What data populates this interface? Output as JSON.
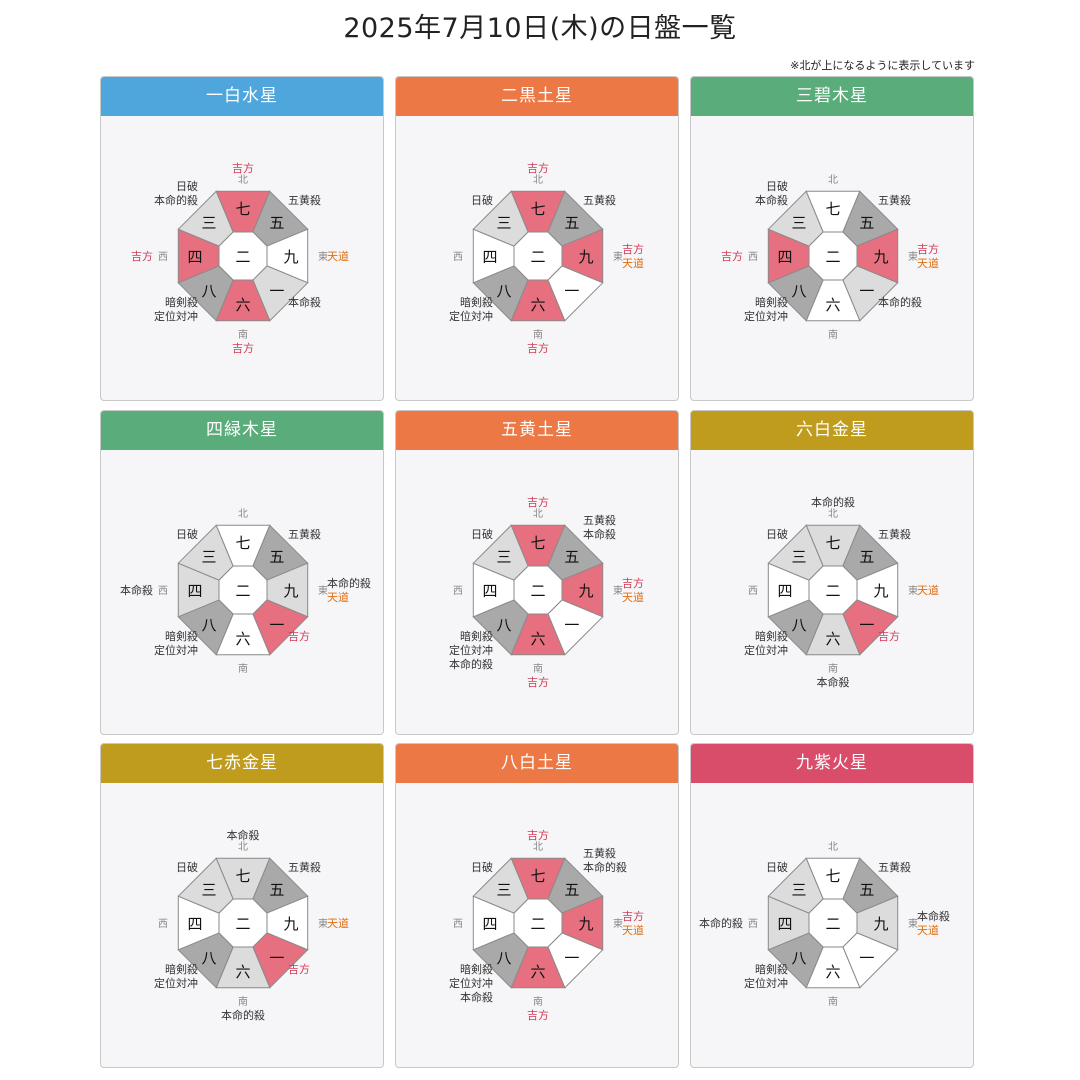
{
  "page": {
    "title": "2025年7月10日(木)の日盤一覧",
    "note": "※北が上になるように表示しています"
  },
  "colors": {
    "blue": "#4fa6dc",
    "orange": "#ec7845",
    "green": "#5aac7a",
    "gold": "#bf9c1e",
    "crimson": "#d94d6b",
    "lucky": "#e6707f",
    "dark": "#a9a9a9",
    "light": "#dcdcdc",
    "white": "#ffffff",
    "red_text": "#d23a55",
    "orange_text": "#e06e10",
    "dir_text": "#888888"
  },
  "directions": {
    "N": "北",
    "S": "南",
    "E": "東",
    "W": "西"
  },
  "cards": [
    {
      "title": "一白水星",
      "header_color": "blue",
      "center": "二",
      "nums": {
        "N": "七",
        "NE": "五",
        "E": "九",
        "SE": "一",
        "S": "六",
        "SW": "八",
        "W": "四",
        "NW": "三"
      },
      "fills": {
        "N": "lucky",
        "NE": "dark",
        "E": "white",
        "SE": "light",
        "S": "lucky",
        "SW": "dark",
        "W": "lucky",
        "NW": "light"
      },
      "labels": {
        "N": [
          {
            "t": "吉方",
            "c": "red"
          }
        ],
        "NE": [
          {
            "t": "五黄殺",
            "c": "dark"
          }
        ],
        "E": [
          {
            "t": "天道",
            "c": "orange"
          }
        ],
        "SE": [
          {
            "t": "本命殺",
            "c": "dark"
          }
        ],
        "S": [
          {
            "t": "吉方",
            "c": "red"
          }
        ],
        "SW": [
          {
            "t": "暗剣殺",
            "c": "dark"
          },
          {
            "t": "定位対冲",
            "c": "dark"
          }
        ],
        "W": [
          {
            "t": "吉方",
            "c": "red"
          }
        ],
        "NW": [
          {
            "t": "日破",
            "c": "dark"
          },
          {
            "t": "本命的殺",
            "c": "dark"
          }
        ]
      }
    },
    {
      "title": "二黒土星",
      "header_color": "orange",
      "center": "二",
      "nums": {
        "N": "七",
        "NE": "五",
        "E": "九",
        "SE": "一",
        "S": "六",
        "SW": "八",
        "W": "四",
        "NW": "三"
      },
      "fills": {
        "N": "lucky",
        "NE": "dark",
        "E": "lucky",
        "SE": "white",
        "S": "lucky",
        "SW": "dark",
        "W": "white",
        "NW": "light"
      },
      "labels": {
        "N": [
          {
            "t": "吉方",
            "c": "red"
          }
        ],
        "NE": [
          {
            "t": "五黄殺",
            "c": "dark"
          }
        ],
        "E": [
          {
            "t": "吉方",
            "c": "red"
          },
          {
            "t": "天道",
            "c": "orange"
          }
        ],
        "SE": [],
        "S": [
          {
            "t": "吉方",
            "c": "red"
          }
        ],
        "SW": [
          {
            "t": "暗剣殺",
            "c": "dark"
          },
          {
            "t": "定位対冲",
            "c": "dark"
          }
        ],
        "W": [],
        "NW": [
          {
            "t": "日破",
            "c": "dark"
          }
        ]
      }
    },
    {
      "title": "三碧木星",
      "header_color": "green",
      "center": "二",
      "nums": {
        "N": "七",
        "NE": "五",
        "E": "九",
        "SE": "一",
        "S": "六",
        "SW": "八",
        "W": "四",
        "NW": "三"
      },
      "fills": {
        "N": "white",
        "NE": "dark",
        "E": "lucky",
        "SE": "light",
        "S": "white",
        "SW": "dark",
        "W": "lucky",
        "NW": "light"
      },
      "labels": {
        "N": [],
        "NE": [
          {
            "t": "五黄殺",
            "c": "dark"
          }
        ],
        "E": [
          {
            "t": "吉方",
            "c": "red"
          },
          {
            "t": "天道",
            "c": "orange"
          }
        ],
        "SE": [
          {
            "t": "本命的殺",
            "c": "dark"
          }
        ],
        "S": [],
        "SW": [
          {
            "t": "暗剣殺",
            "c": "dark"
          },
          {
            "t": "定位対冲",
            "c": "dark"
          }
        ],
        "W": [
          {
            "t": "吉方",
            "c": "red"
          }
        ],
        "NW": [
          {
            "t": "日破",
            "c": "dark"
          },
          {
            "t": "本命殺",
            "c": "dark"
          }
        ]
      }
    },
    {
      "title": "四緑木星",
      "header_color": "green",
      "center": "二",
      "nums": {
        "N": "七",
        "NE": "五",
        "E": "九",
        "SE": "一",
        "S": "六",
        "SW": "八",
        "W": "四",
        "NW": "三"
      },
      "fills": {
        "N": "white",
        "NE": "dark",
        "E": "light",
        "SE": "lucky",
        "S": "white",
        "SW": "dark",
        "W": "light",
        "NW": "light"
      },
      "labels": {
        "N": [],
        "NE": [
          {
            "t": "五黄殺",
            "c": "dark"
          }
        ],
        "E": [
          {
            "t": "本命的殺",
            "c": "dark"
          },
          {
            "t": "天道",
            "c": "orange"
          }
        ],
        "SE": [
          {
            "t": "吉方",
            "c": "red"
          }
        ],
        "S": [],
        "SW": [
          {
            "t": "暗剣殺",
            "c": "dark"
          },
          {
            "t": "定位対冲",
            "c": "dark"
          }
        ],
        "W": [
          {
            "t": "本命殺",
            "c": "dark"
          }
        ],
        "NW": [
          {
            "t": "日破",
            "c": "dark"
          }
        ]
      }
    },
    {
      "title": "五黄土星",
      "header_color": "orange",
      "center": "二",
      "nums": {
        "N": "七",
        "NE": "五",
        "E": "九",
        "SE": "一",
        "S": "六",
        "SW": "八",
        "W": "四",
        "NW": "三"
      },
      "fills": {
        "N": "lucky",
        "NE": "dark",
        "E": "lucky",
        "SE": "white",
        "S": "lucky",
        "SW": "dark",
        "W": "white",
        "NW": "light"
      },
      "labels": {
        "N": [
          {
            "t": "吉方",
            "c": "red"
          }
        ],
        "NE": [
          {
            "t": "五黄殺",
            "c": "dark"
          },
          {
            "t": "本命殺",
            "c": "dark"
          }
        ],
        "E": [
          {
            "t": "吉方",
            "c": "red"
          },
          {
            "t": "天道",
            "c": "orange"
          }
        ],
        "SE": [],
        "S": [
          {
            "t": "吉方",
            "c": "red"
          }
        ],
        "SW": [
          {
            "t": "暗剣殺",
            "c": "dark"
          },
          {
            "t": "定位対冲",
            "c": "dark"
          },
          {
            "t": "本命的殺",
            "c": "dark"
          }
        ],
        "W": [],
        "NW": [
          {
            "t": "日破",
            "c": "dark"
          }
        ]
      }
    },
    {
      "title": "六白金星",
      "header_color": "gold",
      "center": "二",
      "nums": {
        "N": "七",
        "NE": "五",
        "E": "九",
        "SE": "一",
        "S": "六",
        "SW": "八",
        "W": "四",
        "NW": "三"
      },
      "fills": {
        "N": "light",
        "NE": "dark",
        "E": "white",
        "SE": "lucky",
        "S": "light",
        "SW": "dark",
        "W": "white",
        "NW": "light"
      },
      "labels": {
        "N": [
          {
            "t": "本命的殺",
            "c": "dark"
          }
        ],
        "NE": [
          {
            "t": "五黄殺",
            "c": "dark"
          }
        ],
        "E": [
          {
            "t": "天道",
            "c": "orange"
          }
        ],
        "SE": [
          {
            "t": "吉方",
            "c": "red"
          }
        ],
        "S": [
          {
            "t": "本命殺",
            "c": "dark"
          }
        ],
        "SW": [
          {
            "t": "暗剣殺",
            "c": "dark"
          },
          {
            "t": "定位対冲",
            "c": "dark"
          }
        ],
        "W": [],
        "NW": [
          {
            "t": "日破",
            "c": "dark"
          }
        ]
      }
    },
    {
      "title": "七赤金星",
      "header_color": "gold",
      "center": "二",
      "nums": {
        "N": "七",
        "NE": "五",
        "E": "九",
        "SE": "一",
        "S": "六",
        "SW": "八",
        "W": "四",
        "NW": "三"
      },
      "fills": {
        "N": "light",
        "NE": "dark",
        "E": "white",
        "SE": "lucky",
        "S": "light",
        "SW": "dark",
        "W": "white",
        "NW": "light"
      },
      "labels": {
        "N": [
          {
            "t": "本命殺",
            "c": "dark"
          }
        ],
        "NE": [
          {
            "t": "五黄殺",
            "c": "dark"
          }
        ],
        "E": [
          {
            "t": "天道",
            "c": "orange"
          }
        ],
        "SE": [
          {
            "t": "吉方",
            "c": "red"
          }
        ],
        "S": [
          {
            "t": "本命的殺",
            "c": "dark"
          }
        ],
        "SW": [
          {
            "t": "暗剣殺",
            "c": "dark"
          },
          {
            "t": "定位対冲",
            "c": "dark"
          }
        ],
        "W": [],
        "NW": [
          {
            "t": "日破",
            "c": "dark"
          }
        ]
      }
    },
    {
      "title": "八白土星",
      "header_color": "orange",
      "center": "二",
      "nums": {
        "N": "七",
        "NE": "五",
        "E": "九",
        "SE": "一",
        "S": "六",
        "SW": "八",
        "W": "四",
        "NW": "三"
      },
      "fills": {
        "N": "lucky",
        "NE": "dark",
        "E": "lucky",
        "SE": "white",
        "S": "lucky",
        "SW": "dark",
        "W": "white",
        "NW": "light"
      },
      "labels": {
        "N": [
          {
            "t": "吉方",
            "c": "red"
          }
        ],
        "NE": [
          {
            "t": "五黄殺",
            "c": "dark"
          },
          {
            "t": "本命的殺",
            "c": "dark"
          }
        ],
        "E": [
          {
            "t": "吉方",
            "c": "red"
          },
          {
            "t": "天道",
            "c": "orange"
          }
        ],
        "SE": [],
        "S": [
          {
            "t": "吉方",
            "c": "red"
          }
        ],
        "SW": [
          {
            "t": "暗剣殺",
            "c": "dark"
          },
          {
            "t": "定位対冲",
            "c": "dark"
          },
          {
            "t": "本命殺",
            "c": "dark"
          }
        ],
        "W": [],
        "NW": [
          {
            "t": "日破",
            "c": "dark"
          }
        ]
      }
    },
    {
      "title": "九紫火星",
      "header_color": "crimson",
      "center": "二",
      "nums": {
        "N": "七",
        "NE": "五",
        "E": "九",
        "SE": "一",
        "S": "六",
        "SW": "八",
        "W": "四",
        "NW": "三"
      },
      "fills": {
        "N": "white",
        "NE": "dark",
        "E": "light",
        "SE": "white",
        "S": "white",
        "SW": "dark",
        "W": "light",
        "NW": "light"
      },
      "labels": {
        "N": [],
        "NE": [
          {
            "t": "五黄殺",
            "c": "dark"
          }
        ],
        "E": [
          {
            "t": "本命殺",
            "c": "dark"
          },
          {
            "t": "天道",
            "c": "orange"
          }
        ],
        "SE": [],
        "S": [],
        "SW": [
          {
            "t": "暗剣殺",
            "c": "dark"
          },
          {
            "t": "定位対冲",
            "c": "dark"
          }
        ],
        "W": [
          {
            "t": "本命的殺",
            "c": "dark"
          }
        ],
        "NW": [
          {
            "t": "日破",
            "c": "dark"
          }
        ]
      }
    }
  ]
}
